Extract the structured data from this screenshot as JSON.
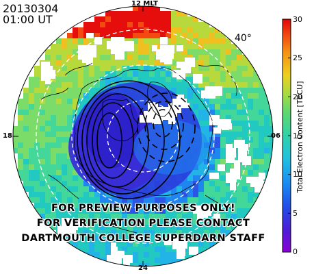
{
  "header": {
    "date": "20130304",
    "time": "01:00 UT"
  },
  "map": {
    "mlt_labels": {
      "top": "12 MLT",
      "left": "18",
      "right": "06",
      "bottom": "24"
    },
    "latitude_label": "40°",
    "palette": [
      "#7700cc",
      "#3a2bd6",
      "#2a55e6",
      "#1f86f0",
      "#22b4e6",
      "#22c9c0",
      "#44d79a",
      "#7cdc6a",
      "#b8d93c",
      "#f0c020",
      "#f78a16",
      "#f24a10",
      "#e60d0d"
    ]
  },
  "colorbar": {
    "title": "Total Electron Content [TECU]",
    "ticks": [
      "30",
      "25",
      "20",
      "15",
      "10",
      "5",
      "0"
    ],
    "min": 0,
    "max": 30
  },
  "watermark": {
    "line1": "FOR PREVIEW PURPOSES ONLY!",
    "line2": "FOR VERIFICATION PLEASE CONTACT",
    "line3": "DARTMOUTH COLLEGE SUPERDARN STAFF"
  }
}
